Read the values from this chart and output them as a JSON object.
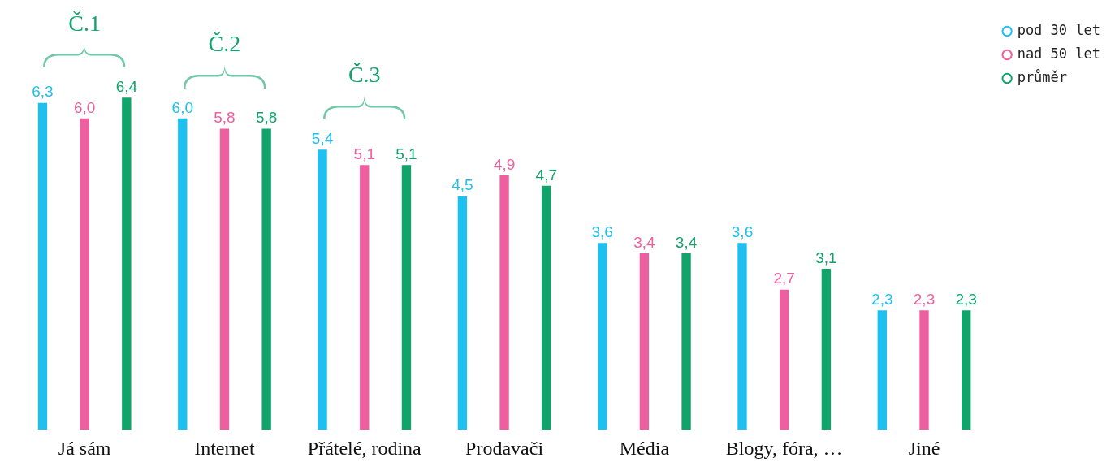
{
  "chart_data": {
    "type": "bar",
    "categories": [
      "Já sám",
      "Internet",
      "Přátelé, rodina",
      "Prodavači",
      "Média",
      "Blogy, fóra, …",
      "Jiné"
    ],
    "series": [
      {
        "name": "pod 30 let",
        "color": "#1ec0f0",
        "values": [
          6.3,
          6.0,
          5.4,
          4.5,
          3.6,
          3.6,
          2.3
        ],
        "value_labels": [
          "6,3",
          "6,0",
          "5,4",
          "4,5",
          "3,6",
          "3,6",
          "2,3"
        ]
      },
      {
        "name": "nad 50 let",
        "color": "#ee5fa0",
        "values": [
          6.0,
          5.8,
          5.1,
          4.9,
          3.4,
          2.7,
          2.3
        ],
        "value_labels": [
          "6,0",
          "5,8",
          "5,1",
          "4,9",
          "3,4",
          "2,7",
          "2,3"
        ]
      },
      {
        "name": "průměr",
        "color": "#10a36a",
        "values": [
          6.4,
          5.8,
          5.1,
          4.7,
          3.4,
          3.1,
          2.3
        ],
        "value_labels": [
          "6,4",
          "5,8",
          "5,1",
          "4,7",
          "3,4",
          "3,1",
          "2,3"
        ]
      }
    ],
    "annotations": [
      "Č.1",
      "Č.2",
      "Č.3"
    ],
    "legend": "top right",
    "grid": false
  }
}
